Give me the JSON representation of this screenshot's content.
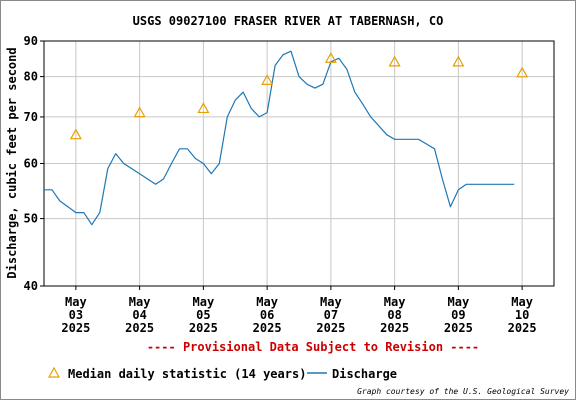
{
  "chart_data": {
    "type": "line",
    "title": "USGS 09027100 FRASER RIVER AT TABERNASH, CO",
    "ylabel": "Discharge, cubic feet per second",
    "y_scale": "log",
    "ylim": [
      40,
      90
    ],
    "y_ticks": [
      "40",
      "50",
      "60",
      "70",
      "80",
      "90"
    ],
    "y_tick_values": [
      40,
      50,
      60,
      70,
      80,
      90
    ],
    "x_tick_labels": [
      {
        "month": "May",
        "day": "03",
        "year": "2025"
      },
      {
        "month": "May",
        "day": "04",
        "year": "2025"
      },
      {
        "month": "May",
        "day": "05",
        "year": "2025"
      },
      {
        "month": "May",
        "day": "06",
        "year": "2025"
      },
      {
        "month": "May",
        "day": "07",
        "year": "2025"
      },
      {
        "month": "May",
        "day": "08",
        "year": "2025"
      },
      {
        "month": "May",
        "day": "09",
        "year": "2025"
      },
      {
        "month": "May",
        "day": "10",
        "year": "2025"
      }
    ],
    "x_tick_dates": [
      "2025-05-03",
      "2025-05-04",
      "2025-05-05",
      "2025-05-06",
      "2025-05-07",
      "2025-05-08",
      "2025-05-09",
      "2025-05-10"
    ],
    "xlim": [
      "2025-05-02T12:00",
      "2025-05-10T12:00"
    ],
    "grid": true,
    "series": [
      {
        "name": "Discharge",
        "color": "#1f77b4",
        "x": [
          "2025-05-02T12:00",
          "2025-05-02T15:00",
          "2025-05-02T18:00",
          "2025-05-02T21:00",
          "2025-05-03T00:00",
          "2025-05-03T03:00",
          "2025-05-03T06:00",
          "2025-05-03T09:00",
          "2025-05-03T12:00",
          "2025-05-03T15:00",
          "2025-05-03T18:00",
          "2025-05-03T21:00",
          "2025-05-04T00:00",
          "2025-05-04T03:00",
          "2025-05-04T06:00",
          "2025-05-04T09:00",
          "2025-05-04T12:00",
          "2025-05-04T15:00",
          "2025-05-04T18:00",
          "2025-05-04T21:00",
          "2025-05-05T00:00",
          "2025-05-05T03:00",
          "2025-05-05T06:00",
          "2025-05-05T09:00",
          "2025-05-05T12:00",
          "2025-05-05T15:00",
          "2025-05-05T18:00",
          "2025-05-05T21:00",
          "2025-05-06T00:00",
          "2025-05-06T03:00",
          "2025-05-06T06:00",
          "2025-05-06T09:00",
          "2025-05-06T12:00",
          "2025-05-06T15:00",
          "2025-05-06T18:00",
          "2025-05-06T21:00",
          "2025-05-07T00:00",
          "2025-05-07T03:00",
          "2025-05-07T06:00",
          "2025-05-07T09:00",
          "2025-05-07T12:00",
          "2025-05-07T15:00",
          "2025-05-07T18:00",
          "2025-05-07T21:00",
          "2025-05-08T00:00",
          "2025-05-08T03:00",
          "2025-05-08T06:00",
          "2025-05-08T09:00",
          "2025-05-08T12:00",
          "2025-05-08T15:00",
          "2025-05-08T18:00",
          "2025-05-08T21:00",
          "2025-05-09T00:00",
          "2025-05-09T03:00",
          "2025-05-09T06:00",
          "2025-05-09T09:00",
          "2025-05-09T12:00",
          "2025-05-09T15:00",
          "2025-05-09T18:00",
          "2025-05-09T21:00"
        ],
        "values": [
          55,
          55,
          53,
          52,
          51,
          51,
          49,
          51,
          59,
          62,
          60,
          59,
          58,
          57,
          56,
          57,
          60,
          63,
          63,
          61,
          60,
          58,
          60,
          70,
          74,
          76,
          72,
          70,
          71,
          83,
          86,
          87,
          80,
          78,
          77,
          78,
          84,
          85,
          82,
          76,
          73,
          70,
          68,
          66,
          65,
          65,
          65,
          65,
          64,
          63,
          57,
          52,
          55,
          56,
          56,
          56,
          56,
          56,
          56,
          56
        ]
      }
    ],
    "median_series": {
      "name": "Median daily statistic (14 years)",
      "color": "#e6a100",
      "x": [
        "2025-05-03T00:00",
        "2025-05-04T00:00",
        "2025-05-05T00:00",
        "2025-05-06T00:00",
        "2025-05-07T00:00",
        "2025-05-08T00:00",
        "2025-05-09T00:00",
        "2025-05-10T00:00"
      ],
      "values": [
        66,
        71,
        72,
        79,
        85,
        84,
        84,
        81
      ]
    },
    "legend_position": "bottom",
    "annotation": "---- Provisional Data Subject to Revision ----",
    "credit": "Graph courtesy of the U.S. Geological Survey"
  }
}
